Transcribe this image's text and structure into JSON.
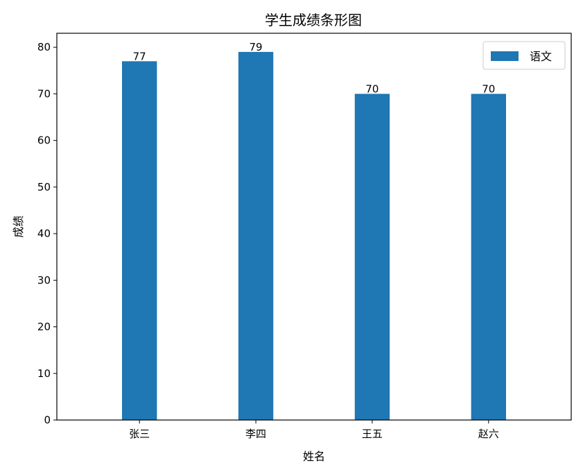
{
  "chart_data": {
    "type": "bar",
    "title": "学生成绩条形图",
    "xlabel": "姓名",
    "ylabel": "成绩",
    "categories": [
      "张三",
      "李四",
      "王五",
      "赵六"
    ],
    "series": [
      {
        "name": "语文",
        "values": [
          77,
          79,
          70,
          70
        ],
        "color": "#1f77b4"
      }
    ],
    "ylim": [
      0,
      83
    ],
    "yticks": [
      0,
      10,
      20,
      30,
      40,
      50,
      60,
      70,
      80
    ],
    "grid": false,
    "legend_position": "top-right",
    "data_labels": true
  }
}
